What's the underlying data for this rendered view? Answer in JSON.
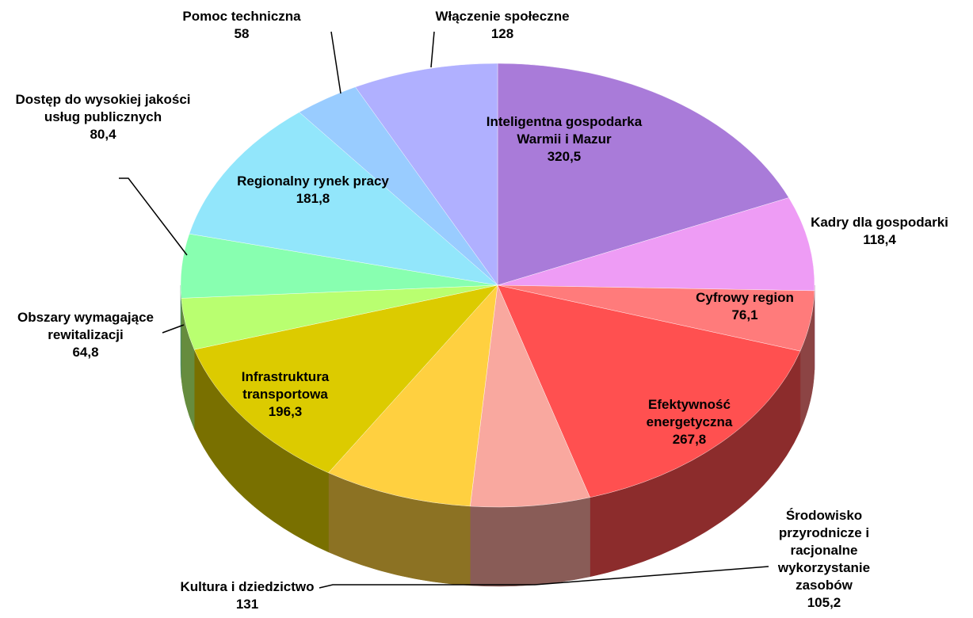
{
  "chart_data": {
    "type": "pie",
    "categories": [
      "Inteligentna gospodarka Warmii i Mazur",
      "Kadry dla gospodarki",
      "Cyfrowy region",
      "Efektywność energetyczna",
      "Środowisko przyrodnicze i racjonalne wykorzystanie zasobów",
      "Kultura i dziedzictwo",
      "Infrastruktura transportowa",
      "Obszary wymagające rewitalizacji",
      "Dostęp do wysokiej jakości usług publicznych",
      "Regionalny rynek pracy",
      "Pomoc techniczna",
      "Włączenie społeczne"
    ],
    "values": [
      320.5,
      118.4,
      76.1,
      267.8,
      105.2,
      131,
      196.3,
      64.8,
      80.4,
      181.8,
      58,
      128
    ],
    "value_labels": [
      "320,5",
      "118,4",
      "76,1",
      "267,8",
      "105,2",
      "131",
      "196,3",
      "64,8",
      "80,4",
      "181,8",
      "58",
      "128"
    ],
    "colors": [
      "#a97bd9",
      "#ee9cf5",
      "#ff7b7b",
      "#ff5050",
      "#f9a89f",
      "#ffd040",
      "#dccb00",
      "#b9ff70",
      "#88ffb0",
      "#92e6fb",
      "#99ccff",
      "#b0b0ff"
    ]
  }
}
